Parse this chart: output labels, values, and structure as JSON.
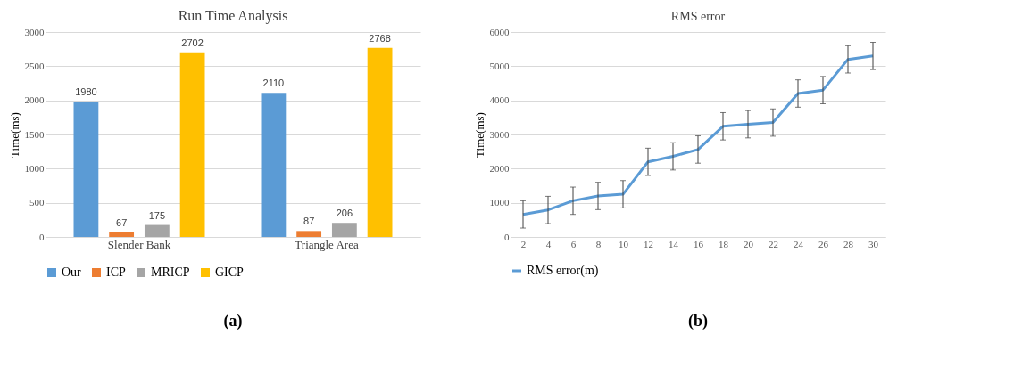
{
  "chart_data": [
    {
      "type": "bar",
      "title": "Run Time Analysis",
      "ylabel": "Time(ms)",
      "categories": [
        "Slender Bank",
        "Triangle Area"
      ],
      "series": [
        {
          "name": "Our",
          "color": "#5b9bd5",
          "values": [
            1980,
            2110
          ]
        },
        {
          "name": "ICP",
          "color": "#ed7d31",
          "values": [
            67,
            87
          ]
        },
        {
          "name": "MRICP",
          "color": "#a5a5a5",
          "values": [
            175,
            206
          ]
        },
        {
          "name": "GICP",
          "color": "#ffc000",
          "values": [
            2702,
            2768
          ]
        }
      ],
      "ylim": [
        0,
        3000
      ],
      "yticks": [
        0,
        500,
        1000,
        1500,
        2000,
        2500,
        3000
      ],
      "grid": "y",
      "legend": "bottom",
      "data_labels": true,
      "annotations": [
        "(a)"
      ]
    },
    {
      "type": "line",
      "title": "RMS error",
      "ylabel": "Time(ms)",
      "x": [
        2,
        4,
        6,
        8,
        10,
        12,
        14,
        16,
        18,
        20,
        22,
        24,
        26,
        28,
        30
      ],
      "series": [
        {
          "name": "RMS error(m)",
          "color": "#5b9bd5",
          "values": [
            660,
            790,
            1060,
            1200,
            1250,
            2200,
            2360,
            2560,
            3240,
            3300,
            3350,
            4200,
            4300,
            5200,
            5300
          ],
          "errors": [
            400,
            400,
            400,
            400,
            400,
            400,
            400,
            400,
            400,
            400,
            400,
            400,
            400,
            400,
            400
          ]
        }
      ],
      "xlim": [
        1,
        31
      ],
      "xticks": [
        2,
        4,
        6,
        8,
        10,
        12,
        14,
        16,
        18,
        20,
        22,
        24,
        26,
        28,
        30
      ],
      "ylim": [
        0,
        6000
      ],
      "yticks": [
        0,
        1000,
        2000,
        3000,
        4000,
        5000,
        6000
      ],
      "grid": "y",
      "legend": "bottom",
      "marker": "none",
      "line_style": "solid",
      "annotations": [
        "(b)"
      ]
    }
  ]
}
